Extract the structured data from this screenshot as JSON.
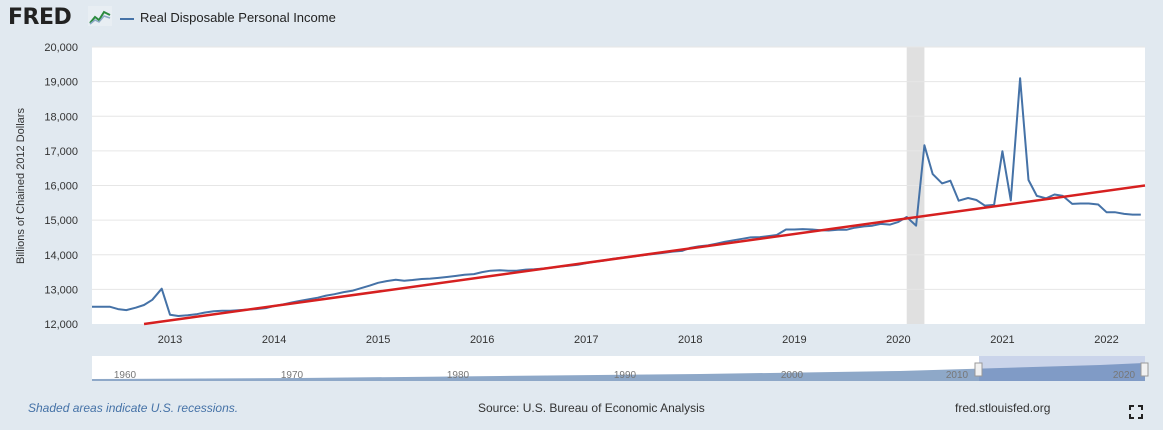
{
  "header": {
    "logo_text": "FRED",
    "legend_label": "Real Disposable Personal Income"
  },
  "footer": {
    "recession_note": "Shaded areas indicate U.S. recessions.",
    "source": "Source: U.S. Bureau of Economic Analysis",
    "site": "fred.stlouisfed.org"
  },
  "icons": {
    "logo_graph": "fred-graph-icon",
    "fullscreen": "fullscreen-icon"
  },
  "colors": {
    "series": "#4572a7",
    "trend": "#d62020",
    "recession": "#e0e0e0",
    "background": "#e1e9f0"
  },
  "chart_data": {
    "type": "line",
    "ylabel": "Billions of Chained 2012 Dollars",
    "ylim": [
      12000,
      20000
    ],
    "xlim": [
      2012.25,
      2022.37
    ],
    "yticks": [
      12000,
      13000,
      14000,
      15000,
      16000,
      17000,
      18000,
      19000,
      20000
    ],
    "ytick_labels": [
      "12,000",
      "13,000",
      "14,000",
      "15,000",
      "16,000",
      "17,000",
      "18,000",
      "19,000",
      "20,000"
    ],
    "xticks": [
      2013,
      2014,
      2015,
      2016,
      2017,
      2018,
      2019,
      2020,
      2021,
      2022
    ],
    "xtick_labels": [
      "2013",
      "2014",
      "2015",
      "2016",
      "2017",
      "2018",
      "2019",
      "2020",
      "2021",
      "2022"
    ],
    "grid": true,
    "legend": "top-left",
    "recessions": [
      [
        2020.08,
        2020.25
      ]
    ],
    "series": [
      {
        "name": "Real Disposable Personal Income",
        "points": [
          [
            2012.25,
            12500
          ],
          [
            2012.33,
            12500
          ],
          [
            2012.42,
            12500
          ],
          [
            2012.5,
            12430
          ],
          [
            2012.58,
            12400
          ],
          [
            2012.67,
            12470
          ],
          [
            2012.75,
            12550
          ],
          [
            2012.83,
            12700
          ],
          [
            2012.92,
            13020
          ],
          [
            2013.0,
            12270
          ],
          [
            2013.08,
            12230
          ],
          [
            2013.17,
            12250
          ],
          [
            2013.25,
            12280
          ],
          [
            2013.33,
            12330
          ],
          [
            2013.42,
            12370
          ],
          [
            2013.5,
            12380
          ],
          [
            2013.58,
            12380
          ],
          [
            2013.67,
            12400
          ],
          [
            2013.75,
            12420
          ],
          [
            2013.83,
            12430
          ],
          [
            2013.92,
            12460
          ],
          [
            2014.0,
            12520
          ],
          [
            2014.08,
            12560
          ],
          [
            2014.17,
            12620
          ],
          [
            2014.25,
            12670
          ],
          [
            2014.33,
            12710
          ],
          [
            2014.42,
            12760
          ],
          [
            2014.5,
            12820
          ],
          [
            2014.58,
            12860
          ],
          [
            2014.67,
            12920
          ],
          [
            2014.75,
            12960
          ],
          [
            2014.83,
            13030
          ],
          [
            2014.92,
            13110
          ],
          [
            2015.0,
            13190
          ],
          [
            2015.08,
            13240
          ],
          [
            2015.17,
            13280
          ],
          [
            2015.25,
            13250
          ],
          [
            2015.33,
            13270
          ],
          [
            2015.42,
            13300
          ],
          [
            2015.5,
            13310
          ],
          [
            2015.58,
            13330
          ],
          [
            2015.67,
            13360
          ],
          [
            2015.75,
            13390
          ],
          [
            2015.83,
            13420
          ],
          [
            2015.92,
            13440
          ],
          [
            2016.0,
            13500
          ],
          [
            2016.08,
            13540
          ],
          [
            2016.17,
            13550
          ],
          [
            2016.25,
            13540
          ],
          [
            2016.33,
            13540
          ],
          [
            2016.42,
            13570
          ],
          [
            2016.5,
            13580
          ],
          [
            2016.58,
            13600
          ],
          [
            2016.67,
            13630
          ],
          [
            2016.75,
            13660
          ],
          [
            2016.83,
            13680
          ],
          [
            2016.92,
            13710
          ],
          [
            2017.0,
            13760
          ],
          [
            2017.08,
            13800
          ],
          [
            2017.17,
            13830
          ],
          [
            2017.25,
            13880
          ],
          [
            2017.33,
            13910
          ],
          [
            2017.42,
            13940
          ],
          [
            2017.5,
            13970
          ],
          [
            2017.58,
            14000
          ],
          [
            2017.67,
            14030
          ],
          [
            2017.75,
            14060
          ],
          [
            2017.83,
            14090
          ],
          [
            2017.92,
            14110
          ],
          [
            2018.0,
            14200
          ],
          [
            2018.08,
            14240
          ],
          [
            2018.17,
            14270
          ],
          [
            2018.25,
            14320
          ],
          [
            2018.33,
            14370
          ],
          [
            2018.42,
            14420
          ],
          [
            2018.5,
            14460
          ],
          [
            2018.58,
            14500
          ],
          [
            2018.67,
            14510
          ],
          [
            2018.75,
            14540
          ],
          [
            2018.83,
            14570
          ],
          [
            2018.92,
            14730
          ],
          [
            2019.0,
            14730
          ],
          [
            2019.08,
            14740
          ],
          [
            2019.17,
            14730
          ],
          [
            2019.25,
            14710
          ],
          [
            2019.33,
            14700
          ],
          [
            2019.42,
            14720
          ],
          [
            2019.5,
            14720
          ],
          [
            2019.58,
            14780
          ],
          [
            2019.67,
            14820
          ],
          [
            2019.75,
            14840
          ],
          [
            2019.83,
            14890
          ],
          [
            2019.92,
            14870
          ],
          [
            2020.0,
            14950
          ],
          [
            2020.08,
            15090
          ],
          [
            2020.17,
            14840
          ],
          [
            2020.25,
            17160
          ],
          [
            2020.33,
            16330
          ],
          [
            2020.42,
            16060
          ],
          [
            2020.5,
            16140
          ],
          [
            2020.58,
            15560
          ],
          [
            2020.67,
            15640
          ],
          [
            2020.75,
            15580
          ],
          [
            2020.83,
            15420
          ],
          [
            2020.92,
            15440
          ],
          [
            2021.0,
            16990
          ],
          [
            2021.08,
            15570
          ],
          [
            2021.17,
            19100
          ],
          [
            2021.25,
            16160
          ],
          [
            2021.33,
            15700
          ],
          [
            2021.42,
            15630
          ],
          [
            2021.5,
            15740
          ],
          [
            2021.58,
            15700
          ],
          [
            2021.67,
            15470
          ],
          [
            2021.75,
            15480
          ],
          [
            2021.83,
            15480
          ],
          [
            2021.92,
            15450
          ],
          [
            2022.0,
            15230
          ],
          [
            2022.08,
            15230
          ],
          [
            2022.17,
            15180
          ],
          [
            2022.25,
            15160
          ],
          [
            2022.33,
            15160
          ]
        ]
      }
    ],
    "trend_line": [
      [
        2012.75,
        12000
      ],
      [
        2022.37,
        16000
      ]
    ],
    "navigator": {
      "xlabels": [
        "1960",
        "1970",
        "1980",
        "1990",
        "2000",
        "2010",
        "2020"
      ]
    }
  }
}
